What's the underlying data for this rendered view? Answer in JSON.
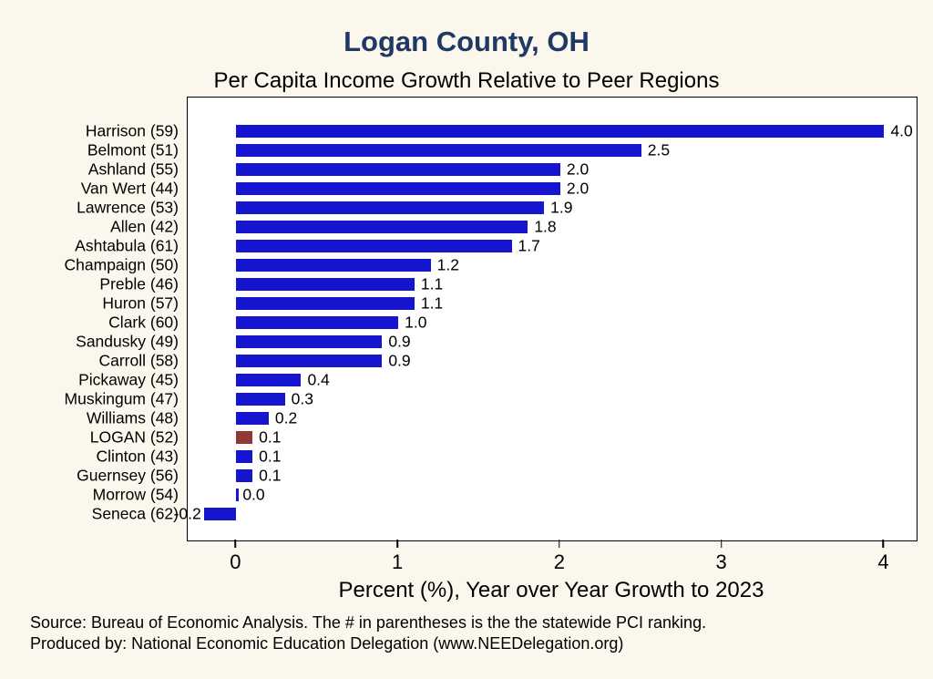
{
  "header": {
    "title": "Logan County, OH",
    "subtitle": "Per Capita Income Growth Relative to Peer Regions"
  },
  "colors": {
    "bar": "#1515cf",
    "highlight": "#953735",
    "title_text": "#1f3864",
    "background": "#fbf7ec",
    "plot_background": "#ffffff"
  },
  "x_axis": {
    "label": "Percent (%), Year over Year Growth to 2023"
  },
  "notes": {
    "line1": "Source: Bureau of Economic Analysis. The # in parentheses is the the statewide PCI ranking.",
    "line2": "Produced by: National Economic Education Delegation (www.NEEDelegation.org)"
  },
  "chart_data": {
    "type": "bar",
    "orientation": "horizontal",
    "title": "Logan County, OH",
    "subtitle": "Per Capita Income Growth Relative to Peer Regions",
    "xlabel": "Percent (%), Year over Year Growth to 2023",
    "categories": [
      "Harrison (59)",
      "Belmont (51)",
      "Ashland (55)",
      "Van Wert (44)",
      "Lawrence (53)",
      "Allen (42)",
      "Ashtabula (61)",
      "Champaign (50)",
      "Preble (46)",
      "Huron (57)",
      "Clark (60)",
      "Sandusky (49)",
      "Carroll (58)",
      "Pickaway (45)",
      "Muskingum (47)",
      "Williams (48)",
      "LOGAN (52)",
      "Clinton (43)",
      "Guernsey (56)",
      "Morrow (54)",
      "Seneca (62)"
    ],
    "values": [
      4.0,
      2.5,
      2.0,
      2.0,
      1.9,
      1.8,
      1.7,
      1.2,
      1.1,
      1.1,
      1.0,
      0.9,
      0.9,
      0.4,
      0.3,
      0.2,
      0.1,
      0.1,
      0.1,
      0.0,
      -0.2
    ],
    "bar_labels": [
      "4.0",
      "2.5",
      "2.0",
      "2.0",
      "1.9",
      "1.8",
      "1.7",
      "1.2",
      "1.1",
      "1.1",
      "1.0",
      "0.9",
      "0.9",
      "0.4",
      "0.3",
      "0.2",
      "0.1",
      "0.1",
      "0.1",
      "0.0",
      "-0.2"
    ],
    "highlight_category": "LOGAN (52)",
    "xticks": [
      0,
      1,
      2,
      3,
      4
    ],
    "xlim": [
      -0.3,
      4.2
    ],
    "grid": false,
    "legend": false
  }
}
